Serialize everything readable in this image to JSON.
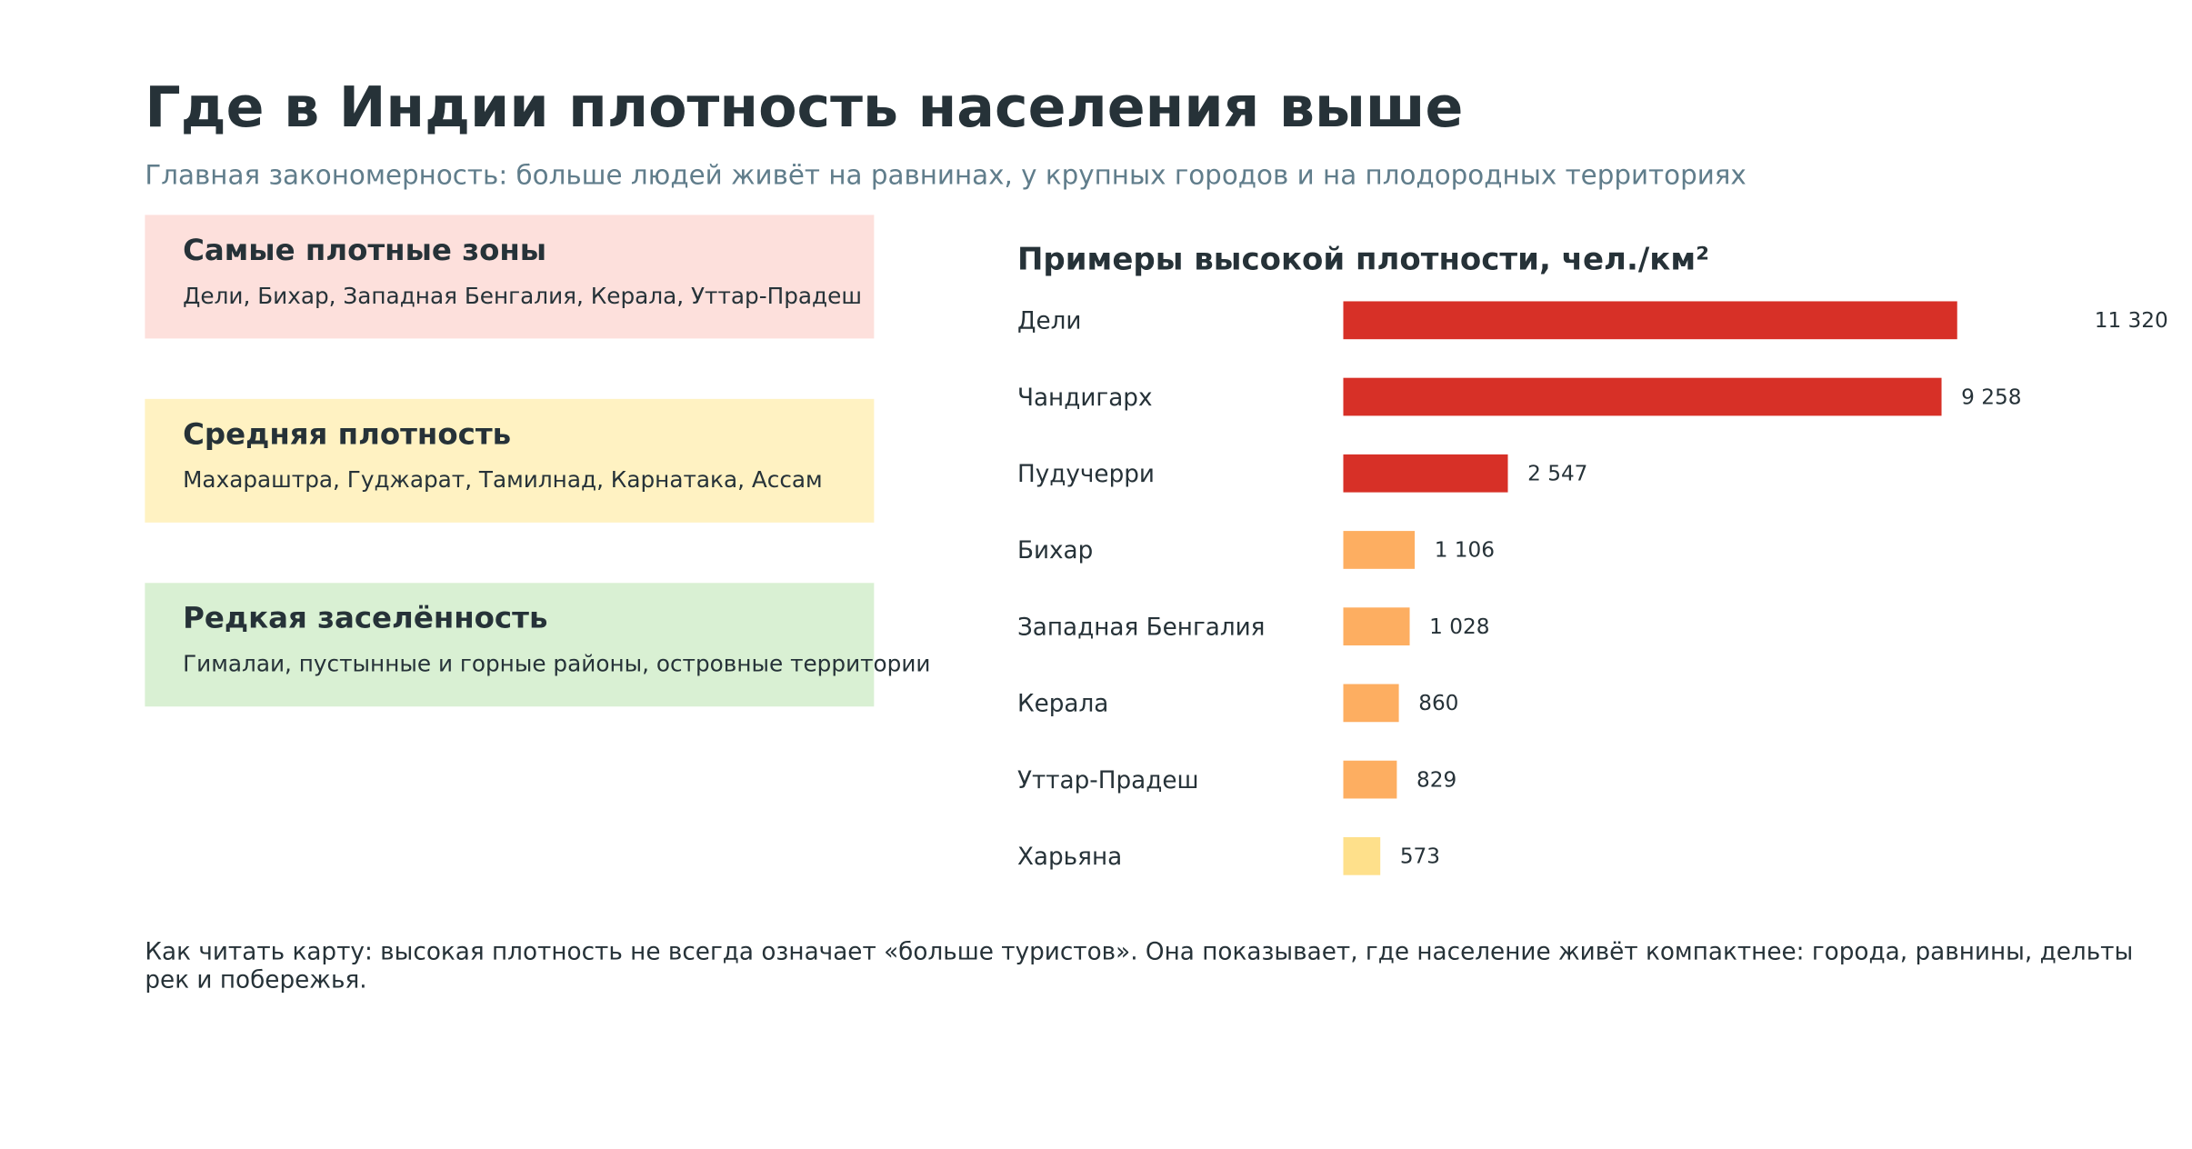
{
  "header": {
    "title": "Где в Индии плотность населения выше",
    "subtitle": "Главная закономерность: больше людей живёт на равнинах, у крупных городов и на плодородных территориях"
  },
  "cards": [
    {
      "title": "Самые плотные зоны",
      "text": "Дели, Бихар, Западная Бенгалия, Керала, Уттар-Прадеш",
      "color": "#fde0dc"
    },
    {
      "title": "Средняя плотность",
      "text": "Махараштра, Гуджарат, Тамилнад, Карнатака, Ассам",
      "color": "#fff2c2"
    },
    {
      "title": "Редкая заселённость",
      "text": "Гималаи, пустынные и горные районы, островные территории",
      "color": "#d9f0d3"
    }
  ],
  "chart_data": {
    "type": "bar",
    "orientation": "horizontal",
    "title": "Примеры высокой плотности, чел./км²",
    "categories": [
      "Дели",
      "Чандигарх",
      "Пудучерри",
      "Бихар",
      "Западная Бенгалия",
      "Керала",
      "Уттар-Прадеш",
      "Харьяна"
    ],
    "values": [
      11320,
      9258,
      2547,
      1106,
      1028,
      860,
      829,
      573
    ],
    "value_labels": [
      "11 320",
      "9 258",
      "2 547",
      "1 106",
      "1 028",
      "860",
      "829",
      "573"
    ],
    "colors": [
      "#d73027",
      "#d73027",
      "#d73027",
      "#fdae61",
      "#fdae61",
      "#fdae61",
      "#fdae61",
      "#fee08b"
    ],
    "xlim": [
      0,
      9500
    ]
  },
  "footer": {
    "text": "Как читать карту: высокая плотность не всегда означает «больше туристов». Она показывает, где население живёт компактнее: города, равнины, дельты рек и побережья."
  }
}
